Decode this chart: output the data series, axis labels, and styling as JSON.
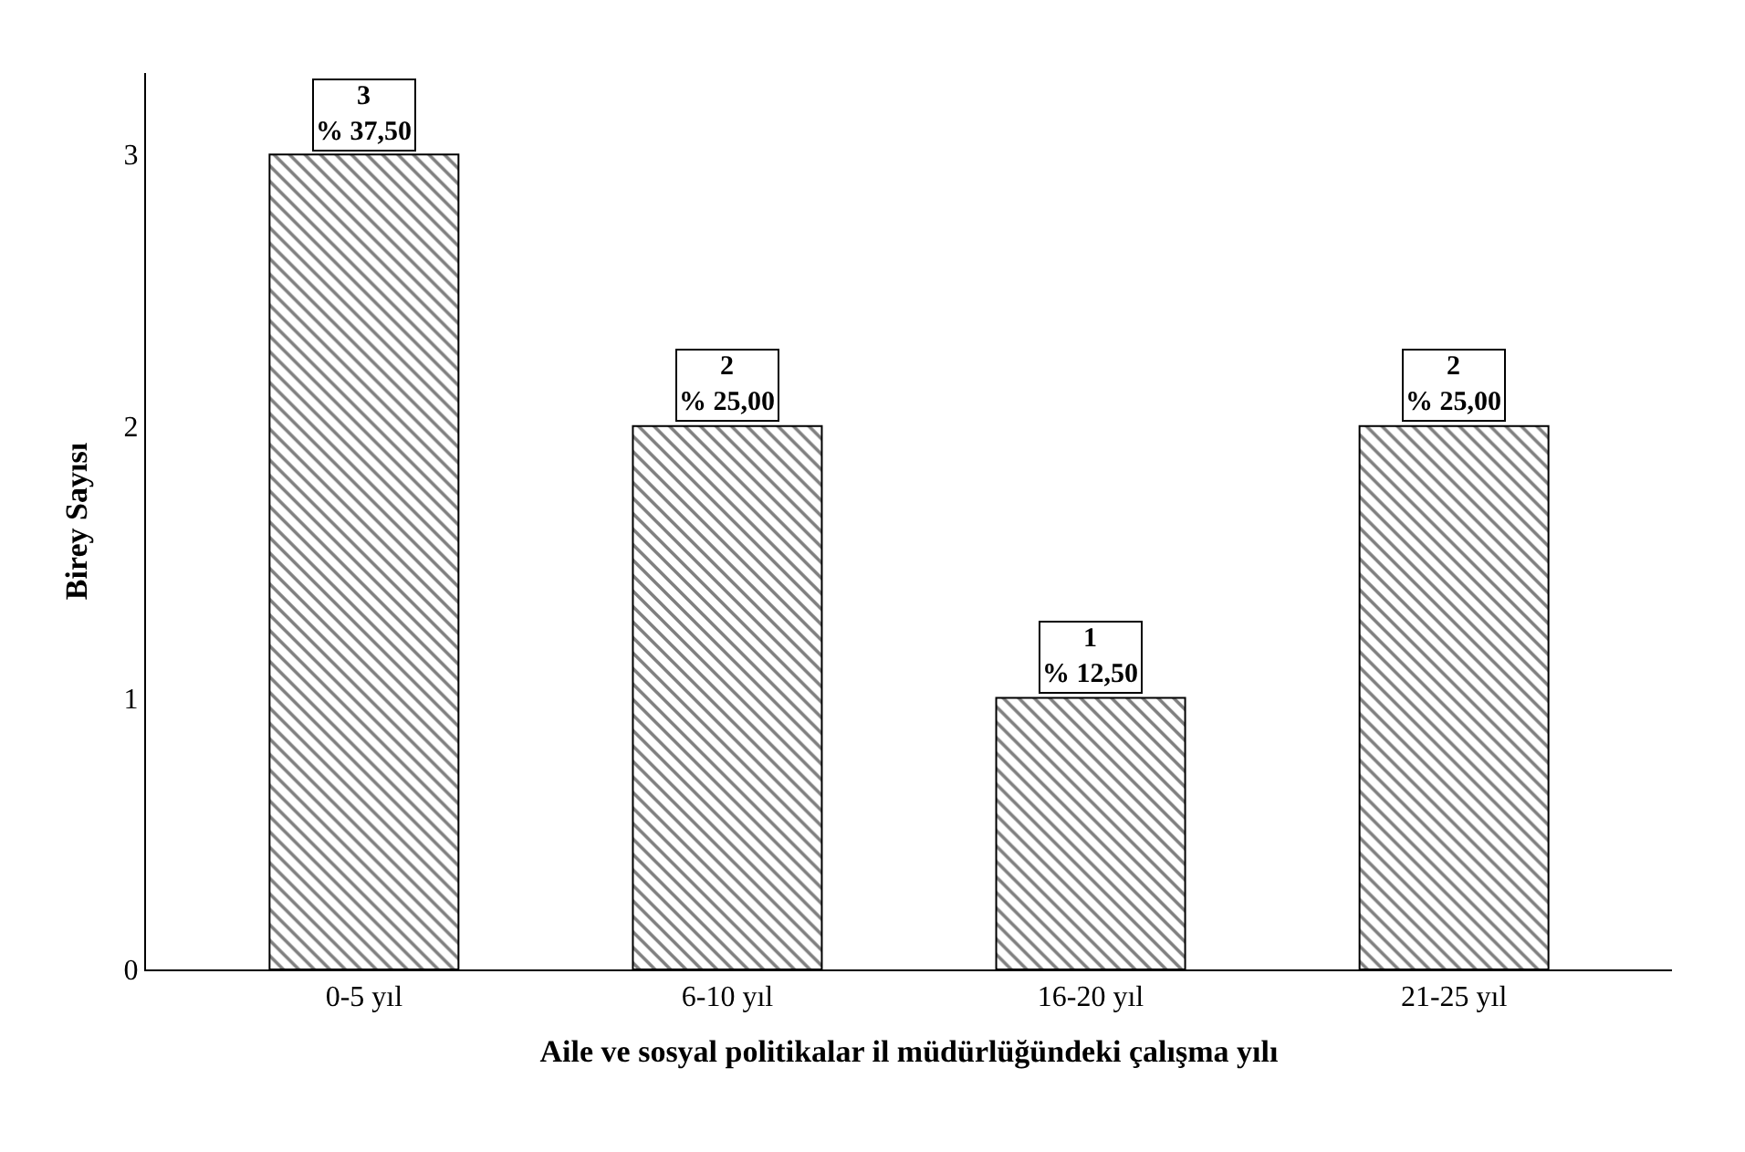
{
  "chart_data": {
    "type": "bar",
    "xlabel": "Aile ve sosyal politikalar il müdürlüğündeki çalışma yılı",
    "ylabel": "Birey Sayısı",
    "categories": [
      "0-5 yıl",
      "6-10 yıl",
      "16-20 yıl",
      "21-25 yıl"
    ],
    "values": [
      3,
      2,
      1,
      2
    ],
    "color": "#000000",
    "value_labels": [
      "3\n% 37,50",
      "2\n% 25,00",
      "1\n% 12,50",
      "2\n% 25,00"
    ],
    "ylim": [
      0,
      3.3
    ],
    "yticks": [
      0,
      1,
      2,
      3
    ],
    "legend": false
  }
}
